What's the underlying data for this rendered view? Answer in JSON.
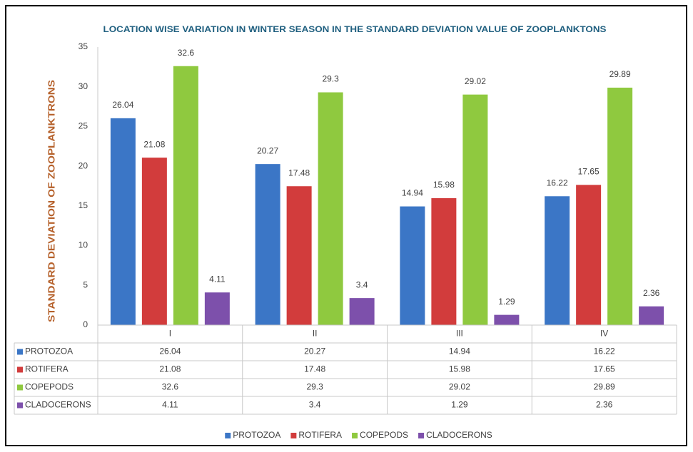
{
  "chart_data": {
    "type": "bar",
    "title": "LOCATION WISE VARIATION IN WINTER SEASON IN THE STANDARD DEVIATION VALUE OF ZOOPLANKTONS",
    "y_label": "STANDARD DEVIATION OF ZOOPLANKTRONS",
    "categories": [
      "I",
      "II",
      "III",
      "IV"
    ],
    "series": [
      {
        "name": "PROTOZOA",
        "color": "#3b76c6",
        "values": [
          26.04,
          20.27,
          14.94,
          16.22
        ]
      },
      {
        "name": "ROTIFERA",
        "color": "#d23c3c",
        "values": [
          21.08,
          17.48,
          15.98,
          17.65
        ]
      },
      {
        "name": "COPEPODS",
        "color": "#8fc93f",
        "values": [
          32.6,
          29.3,
          29.02,
          29.89
        ]
      },
      {
        "name": "CLADOCERONS",
        "color": "#7d50ab",
        "values": [
          4.11,
          3.4,
          1.29,
          2.36
        ]
      }
    ],
    "ylim": [
      0,
      35
    ],
    "yticks": [
      0,
      5,
      10,
      15,
      20,
      25,
      30,
      35
    ],
    "grid": false,
    "legend": "bottom",
    "data_table": true
  }
}
